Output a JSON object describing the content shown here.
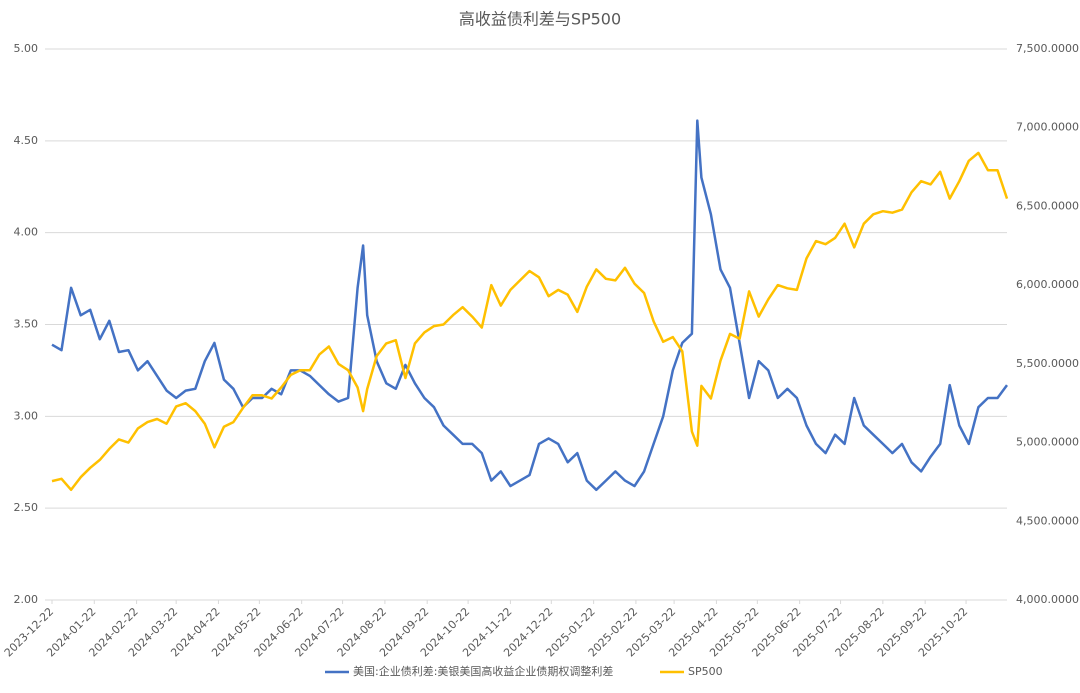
{
  "chart_data": {
    "type": "line",
    "title": "高收益债利差与SP500",
    "x": [
      "2023-12-22",
      "2023-12-29",
      "2024-01-05",
      "2024-01-12",
      "2024-01-19",
      "2024-01-26",
      "2024-02-02",
      "2024-02-09",
      "2024-02-16",
      "2024-02-23",
      "2024-03-01",
      "2024-03-08",
      "2024-03-15",
      "2024-03-22",
      "2024-03-29",
      "2024-04-05",
      "2024-04-12",
      "2024-04-19",
      "2024-04-26",
      "2024-05-03",
      "2024-05-10",
      "2024-05-17",
      "2024-05-24",
      "2024-05-31",
      "2024-06-07",
      "2024-06-14",
      "2024-06-21",
      "2024-06-28",
      "2024-07-05",
      "2024-07-12",
      "2024-07-19",
      "2024-07-26",
      "2024-08-02",
      "2024-08-06",
      "2024-08-09",
      "2024-08-16",
      "2024-08-23",
      "2024-08-30",
      "2024-09-06",
      "2024-09-13",
      "2024-09-20",
      "2024-09-27",
      "2024-10-04",
      "2024-10-11",
      "2024-10-18",
      "2024-10-25",
      "2024-11-01",
      "2024-11-08",
      "2024-11-15",
      "2024-11-22",
      "2024-11-29",
      "2024-12-06",
      "2024-12-13",
      "2024-12-20",
      "2024-12-27",
      "2025-01-03",
      "2025-01-10",
      "2025-01-17",
      "2025-01-24",
      "2025-01-31",
      "2025-02-07",
      "2025-02-14",
      "2025-02-21",
      "2025-02-28",
      "2025-03-07",
      "2025-03-14",
      "2025-03-21",
      "2025-03-28",
      "2025-04-04",
      "2025-04-08",
      "2025-04-11",
      "2025-04-18",
      "2025-04-25",
      "2025-05-02",
      "2025-05-09",
      "2025-05-16",
      "2025-05-23",
      "2025-05-30",
      "2025-06-06",
      "2025-06-13",
      "2025-06-20",
      "2025-06-27",
      "2025-07-04",
      "2025-07-11",
      "2025-07-18",
      "2025-07-25",
      "2025-08-01",
      "2025-08-08",
      "2025-08-15",
      "2025-08-22",
      "2025-08-29",
      "2025-09-05",
      "2025-09-12",
      "2025-09-19",
      "2025-09-26",
      "2025-10-03",
      "2025-10-10",
      "2025-10-17",
      "2025-10-24",
      "2025-10-31",
      "2025-11-07",
      "2025-11-14",
      "2025-11-21"
    ],
    "series": [
      {
        "name": "美国:企业债利差:美银美国高收益企业债期权调整利差",
        "color": "#4472c4",
        "axis": "y",
        "values": [
          3.39,
          3.36,
          3.7,
          3.55,
          3.58,
          3.42,
          3.52,
          3.35,
          3.36,
          3.25,
          3.3,
          3.22,
          3.14,
          3.1,
          3.14,
          3.15,
          3.3,
          3.4,
          3.2,
          3.15,
          3.05,
          3.1,
          3.1,
          3.15,
          3.12,
          3.25,
          3.25,
          3.22,
          3.17,
          3.12,
          3.08,
          3.1,
          3.7,
          3.93,
          3.55,
          3.3,
          3.18,
          3.15,
          3.28,
          3.18,
          3.1,
          3.05,
          2.95,
          2.9,
          2.85,
          2.85,
          2.8,
          2.65,
          2.7,
          2.62,
          2.65,
          2.68,
          2.85,
          2.88,
          2.85,
          2.75,
          2.8,
          2.65,
          2.6,
          2.65,
          2.7,
          2.65,
          2.62,
          2.7,
          2.85,
          3.0,
          3.25,
          3.4,
          3.45,
          4.61,
          4.3,
          4.1,
          3.8,
          3.7,
          3.4,
          3.1,
          3.3,
          3.25,
          3.1,
          3.15,
          3.1,
          2.95,
          2.85,
          2.8,
          2.9,
          2.85,
          3.1,
          2.95,
          2.9,
          2.85,
          2.8,
          2.85,
          2.75,
          2.7,
          2.78,
          2.85,
          3.17,
          2.95,
          2.85,
          3.05,
          3.1,
          3.1,
          3.17
        ]
      },
      {
        "name": "SP500",
        "color": "#ffc000",
        "axis": "y2",
        "values": [
          4755,
          4770,
          4700,
          4780,
          4840,
          4890,
          4960,
          5020,
          5000,
          5090,
          5130,
          5150,
          5120,
          5230,
          5250,
          5200,
          5120,
          4970,
          5100,
          5130,
          5220,
          5300,
          5300,
          5280,
          5350,
          5430,
          5460,
          5460,
          5560,
          5610,
          5500,
          5460,
          5350,
          5200,
          5340,
          5550,
          5630,
          5650,
          5410,
          5630,
          5700,
          5740,
          5750,
          5810,
          5860,
          5800,
          5730,
          6000,
          5870,
          5970,
          6030,
          6090,
          6050,
          5930,
          5970,
          5940,
          5830,
          5990,
          6100,
          6040,
          6030,
          6110,
          6010,
          5950,
          5770,
          5640,
          5670,
          5580,
          5070,
          4980,
          5360,
          5280,
          5520,
          5690,
          5660,
          5960,
          5800,
          5910,
          6000,
          5980,
          5970,
          6170,
          6280,
          6260,
          6300,
          6390,
          6240,
          6390,
          6450,
          6470,
          6460,
          6480,
          6590,
          6660,
          6640,
          6720,
          6550,
          6660,
          6790,
          6840,
          6730,
          6730,
          6550
        ]
      }
    ],
    "xlim": [
      "2023-12-22",
      "2025-11-21"
    ],
    "xticks": [
      "2023-12-22",
      "2024-01-22",
      "2024-02-22",
      "2024-03-22",
      "2024-04-22",
      "2024-05-22",
      "2024-06-22",
      "2024-07-22",
      "2024-08-22",
      "2024-09-22",
      "2024-10-22",
      "2024-11-22",
      "2024-12-22",
      "2025-01-22",
      "2025-02-22",
      "2025-03-22",
      "2025-04-22",
      "2025-05-22",
      "2025-06-22",
      "2025-07-22",
      "2025-08-22",
      "2025-09-22",
      "2025-10-22"
    ],
    "ylim": [
      2,
      5
    ],
    "yticks": [
      {
        "value": 2,
        "label": "2.00"
      },
      {
        "value": 2.5,
        "label": "2.50"
      },
      {
        "value": 3,
        "label": "3.00"
      },
      {
        "value": 3.5,
        "label": "3.50"
      },
      {
        "value": 4,
        "label": "4.00"
      },
      {
        "value": 4.5,
        "label": "4.50"
      },
      {
        "value": 5,
        "label": "5.00"
      }
    ],
    "y2lim": [
      4000,
      7500
    ],
    "y2ticks": [
      {
        "value": 4000,
        "label": "4,000.0000"
      },
      {
        "value": 4500,
        "label": "4,500.0000"
      },
      {
        "value": 5000,
        "label": "5,000.0000"
      },
      {
        "value": 5500,
        "label": "5,500.0000"
      },
      {
        "value": 6000,
        "label": "6,000.0000"
      },
      {
        "value": 6500,
        "label": "6,500.0000"
      },
      {
        "value": 7000,
        "label": "7,000.0000"
      },
      {
        "value": 7500,
        "label": "7,500.0000"
      }
    ],
    "grid": true,
    "legend": "bottom"
  }
}
